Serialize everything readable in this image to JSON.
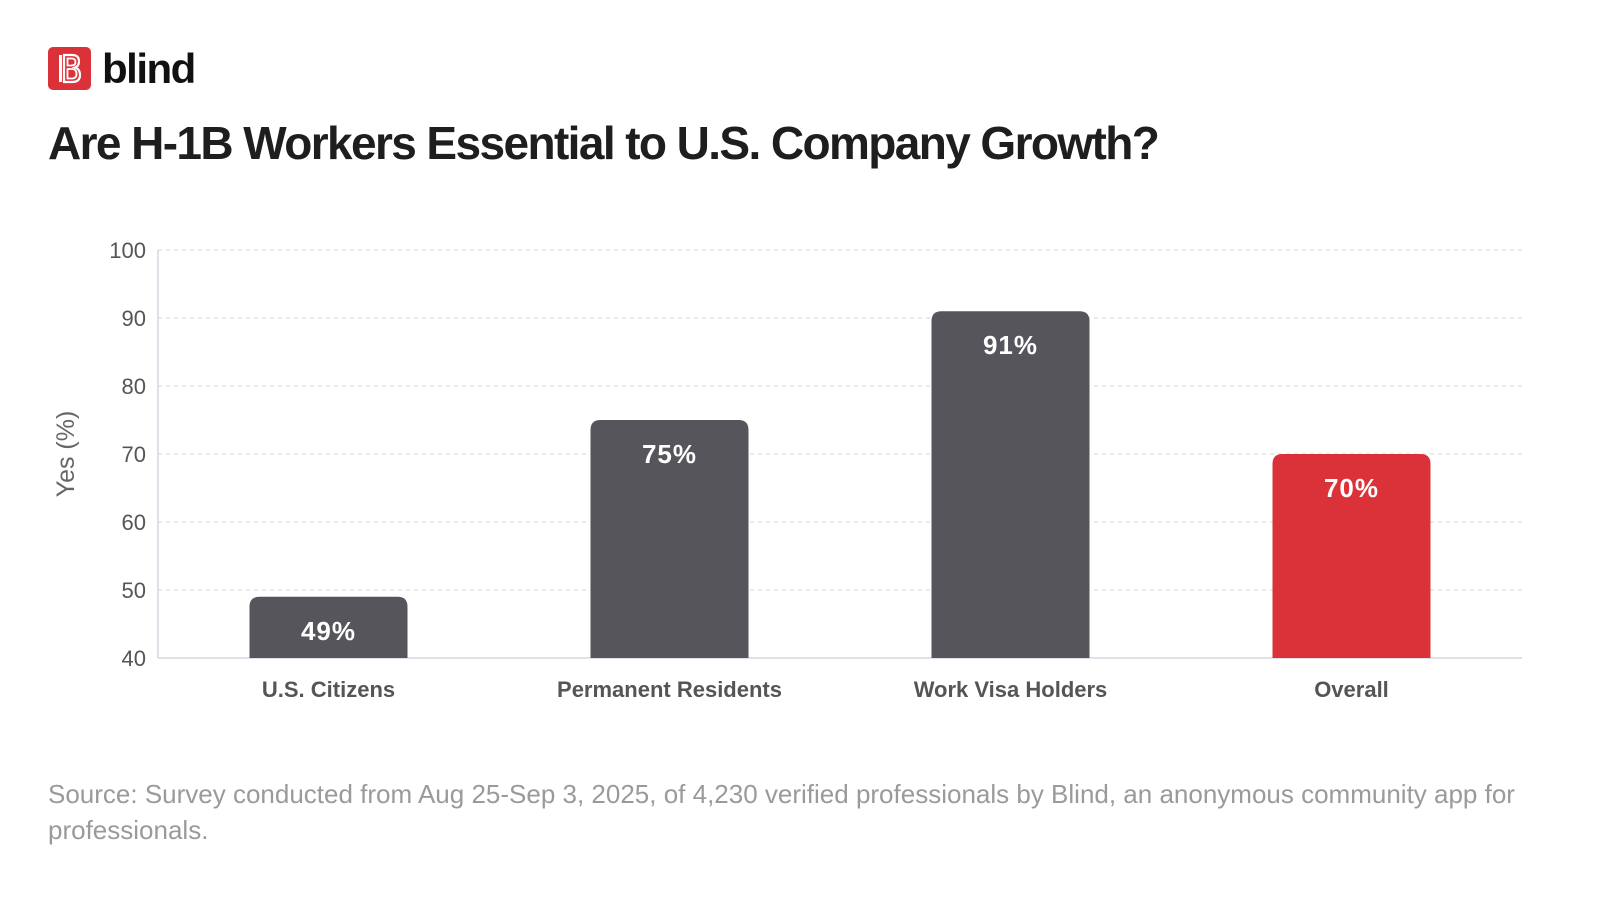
{
  "brand": {
    "name": "blind",
    "logo_icon": "blind-logo-icon",
    "color": "#db3138"
  },
  "title": "Are H-1B Workers Essential to U.S. Company Growth?",
  "chart_data": {
    "type": "bar",
    "title": "Are H-1B Workers Essential to U.S. Company Growth?",
    "categories": [
      "U.S. Citizens",
      "Permanent Residents",
      "Work Visa Holders",
      "Overall"
    ],
    "values": [
      49,
      75,
      91,
      70
    ],
    "data_labels": [
      "49%",
      "75%",
      "91%",
      "70%"
    ],
    "bar_colors": [
      "#56555b",
      "#56555b",
      "#56555b",
      "#db3138"
    ],
    "xlabel": "",
    "ylabel": "Yes (%)",
    "ylim": [
      40,
      100
    ],
    "yticks": [
      40,
      50,
      60,
      70,
      80,
      90,
      100
    ],
    "grid": true
  },
  "source": "Source: Survey conducted from Aug 25-Sep 3, 2025, of 4,230 verified professionals by Blind, an anonymous community app for professionals."
}
